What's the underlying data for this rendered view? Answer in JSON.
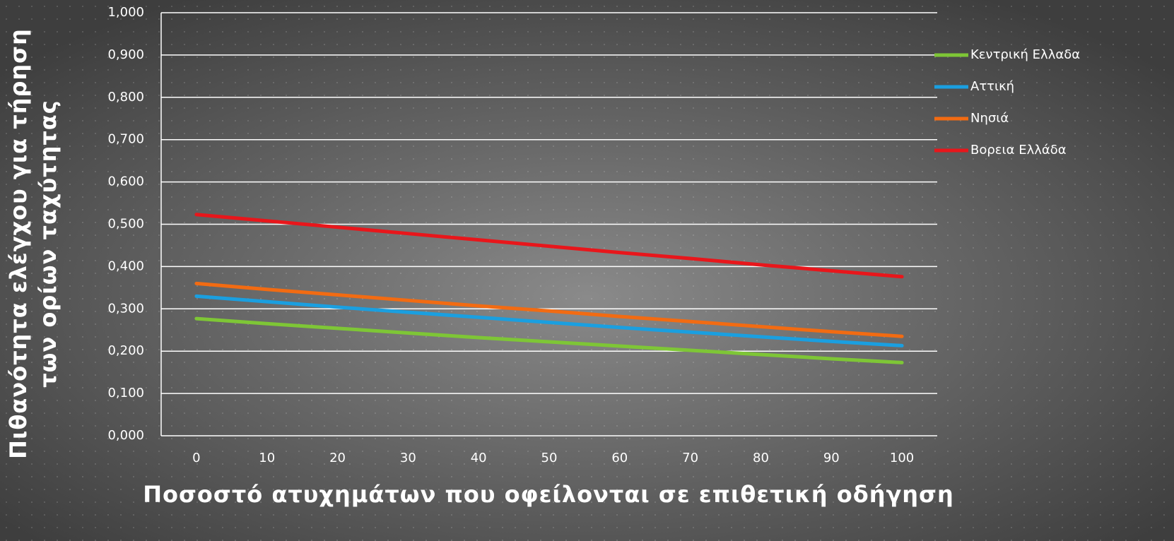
{
  "chart_data": {
    "type": "line",
    "ylabel": [
      "Πιθανότητα ελέγχου για τήρηση",
      "των ορίων ταχύτητας"
    ],
    "xlabel": "Ποσοστό ατυχημάτων που οφείλονται σε επιθετική οδήγηση",
    "categories": [
      "0",
      "10",
      "20",
      "30",
      "40",
      "50",
      "60",
      "70",
      "80",
      "90",
      "100"
    ],
    "series": [
      {
        "name": "Κεντρική Ελλαδα",
        "color": "#7ec636",
        "values": [
          0.277,
          0.265,
          0.254,
          0.243,
          0.232,
          0.222,
          0.212,
          0.202,
          0.192,
          0.182,
          0.173
        ]
      },
      {
        "name": "Αττική",
        "color": "#1a9fe0",
        "values": [
          0.33,
          0.317,
          0.304,
          0.292,
          0.28,
          0.268,
          0.256,
          0.245,
          0.234,
          0.223,
          0.213
        ]
      },
      {
        "name": "Νησιά",
        "color": "#f26b12",
        "values": [
          0.36,
          0.346,
          0.333,
          0.32,
          0.307,
          0.295,
          0.282,
          0.27,
          0.258,
          0.246,
          0.235
        ]
      },
      {
        "name": "Βορεια Ελλάδα",
        "color": "#e8161b",
        "values": [
          0.523,
          0.508,
          0.493,
          0.478,
          0.463,
          0.448,
          0.433,
          0.419,
          0.404,
          0.39,
          0.376
        ]
      }
    ],
    "ylim": [
      0,
      1
    ],
    "yticks": [
      {
        "value": 0,
        "label": "0,000"
      },
      {
        "value": 0.1,
        "label": "0,100"
      },
      {
        "value": 0.2,
        "label": "0,200"
      },
      {
        "value": 0.3,
        "label": "0,300"
      },
      {
        "value": 0.4,
        "label": "0,400"
      },
      {
        "value": 0.5,
        "label": "0,500"
      },
      {
        "value": 0.6,
        "label": "0,600"
      },
      {
        "value": 0.7,
        "label": "0,700"
      },
      {
        "value": 0.8,
        "label": "0,800"
      },
      {
        "value": 0.9,
        "label": "0,900"
      },
      {
        "value": 1,
        "label": "1,000"
      }
    ],
    "grid": true,
    "legend": "right"
  }
}
